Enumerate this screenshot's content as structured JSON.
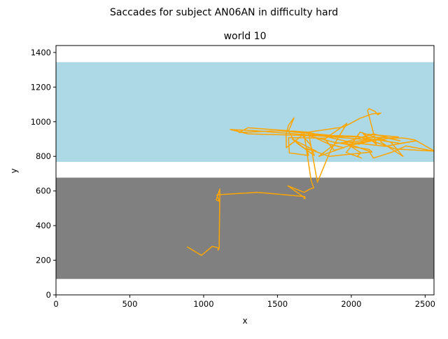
{
  "figure": {
    "suptitle": "Saccades for subject AN06AN in difficulty hard"
  },
  "chart_data": {
    "type": "line",
    "title": "world 10",
    "xlabel": "x",
    "ylabel": "y",
    "xlim": [
      0,
      2560
    ],
    "ylim": [
      0,
      1440
    ],
    "xticks": [
      0,
      500,
      1000,
      1500,
      2000,
      2500
    ],
    "yticks": [
      0,
      200,
      400,
      600,
      800,
      1000,
      1200,
      1400
    ],
    "grid": false,
    "regions": [
      {
        "name": "upper-band",
        "color": "#add8e6",
        "x": [
          0,
          2560
        ],
        "y": [
          768,
          1344
        ]
      },
      {
        "name": "lower-band",
        "color": "#808080",
        "x": [
          0,
          2560
        ],
        "y": [
          92,
          677
        ]
      }
    ],
    "series": [
      {
        "color": "#ffa500",
        "points": [
          [
            888,
            278
          ],
          [
            985,
            228
          ],
          [
            1058,
            280
          ],
          [
            1100,
            272
          ],
          [
            1097,
            258
          ],
          [
            1105,
            268
          ],
          [
            1110,
            612
          ],
          [
            1085,
            548
          ],
          [
            1106,
            540
          ],
          [
            1090,
            578
          ],
          [
            1365,
            592
          ],
          [
            1686,
            568
          ],
          [
            1680,
            555
          ],
          [
            1688,
            558
          ],
          [
            1570,
            630
          ],
          [
            1680,
            592
          ],
          [
            1722,
            612
          ],
          [
            1745,
            618
          ],
          [
            1728,
            660
          ],
          [
            1680,
            930
          ],
          [
            1560,
            850
          ],
          [
            1558,
            925
          ],
          [
            1575,
            980
          ],
          [
            1612,
            1022
          ],
          [
            1575,
            946
          ],
          [
            1610,
            895
          ],
          [
            1762,
            830
          ],
          [
            1690,
            842
          ],
          [
            1600,
            900
          ],
          [
            1645,
            868
          ],
          [
            1750,
            805
          ],
          [
            1720,
            870
          ],
          [
            1660,
            930
          ],
          [
            1880,
            882
          ],
          [
            2000,
            865
          ],
          [
            2090,
            880
          ],
          [
            2200,
            900
          ],
          [
            2200,
            882
          ],
          [
            2350,
            800
          ],
          [
            2270,
            880
          ],
          [
            2060,
            940
          ],
          [
            1990,
            858
          ],
          [
            2120,
            840
          ],
          [
            2140,
            825
          ],
          [
            1850,
            800
          ],
          [
            1700,
            845
          ],
          [
            1710,
            805
          ],
          [
            1580,
            820
          ],
          [
            1575,
            908
          ],
          [
            1830,
            905
          ],
          [
            1860,
            922
          ],
          [
            1510,
            948
          ],
          [
            1240,
            938
          ],
          [
            1300,
            965
          ],
          [
            1700,
            940
          ],
          [
            2000,
            880
          ],
          [
            2100,
            870
          ],
          [
            2230,
            858
          ],
          [
            2440,
            890
          ],
          [
            2330,
            875
          ],
          [
            2100,
            905
          ],
          [
            2050,
            870
          ],
          [
            2220,
            910
          ],
          [
            2330,
            890
          ],
          [
            2150,
            930
          ],
          [
            1950,
            880
          ],
          [
            2020,
            860
          ],
          [
            2120,
            830
          ],
          [
            2150,
            790
          ],
          [
            2280,
            825
          ],
          [
            2370,
            860
          ],
          [
            2560,
            830
          ],
          [
            2300,
            842
          ],
          [
            2050,
            915
          ],
          [
            1710,
            925
          ],
          [
            1850,
            870
          ],
          [
            1950,
            850
          ],
          [
            1885,
            835
          ],
          [
            1820,
            900
          ],
          [
            1970,
            990
          ],
          [
            1860,
            835
          ],
          [
            1770,
            650
          ],
          [
            1710,
            940
          ],
          [
            1950,
            970
          ],
          [
            2060,
            1020
          ],
          [
            2140,
            1045
          ],
          [
            2200,
            1050
          ],
          [
            2180,
            1040
          ],
          [
            2160,
            1060
          ],
          [
            2120,
            1075
          ],
          [
            2110,
            1065
          ],
          [
            2170,
            870
          ],
          [
            2080,
            930
          ],
          [
            2320,
            912
          ],
          [
            1975,
            870
          ],
          [
            2065,
            820
          ],
          [
            2040,
            800
          ],
          [
            2070,
            790
          ],
          [
            1965,
            822
          ],
          [
            2010,
            870
          ],
          [
            1780,
            800
          ],
          [
            1895,
            875
          ],
          [
            2130,
            895
          ],
          [
            1345,
            948
          ],
          [
            1180,
            955
          ],
          [
            1300,
            930
          ],
          [
            2360,
            905
          ],
          [
            2430,
            895
          ],
          [
            2560,
            832
          ]
        ]
      }
    ]
  }
}
